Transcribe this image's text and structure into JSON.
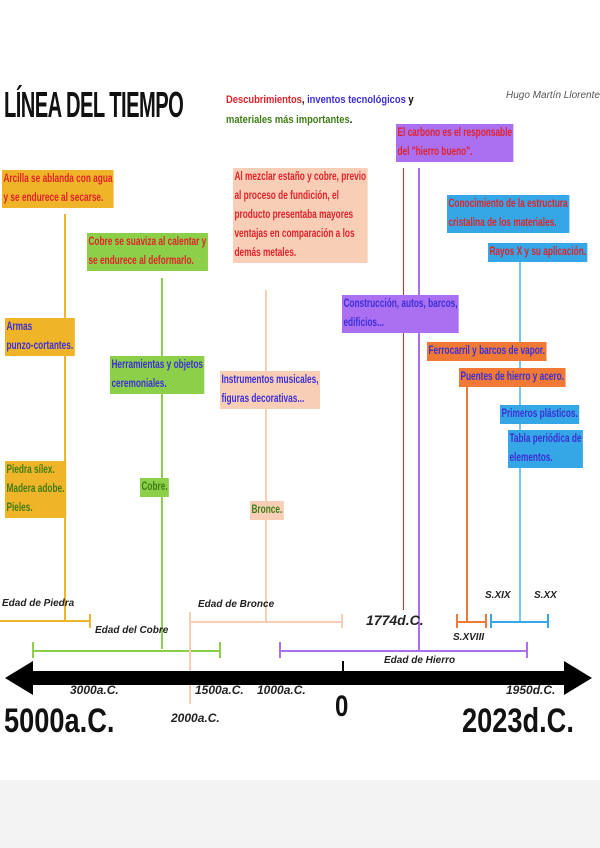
{
  "title": "LÍNEA DEL TIEMPO",
  "legend": {
    "discoveries": "Descubrimientos",
    "sep": ", ",
    "inventions": "inventos tecnológicos",
    "y": " y",
    "materials": "materiales más importantes",
    "dot": "."
  },
  "author": "Hugo Martín Llorente",
  "stone": {
    "discovery": [
      "Arcilla se ablanda con agua",
      "y se endurece al secarse."
    ],
    "invention": [
      "Armas",
      "punzo-cortantes."
    ],
    "material": [
      "Piedra sílex.",
      "Madera adobe.",
      "Pieles."
    ],
    "label": "Edad de Piedra"
  },
  "copper": {
    "discovery": [
      "Cobre se suaviza al calentar y",
      "se endurece al deformarlo."
    ],
    "invention": [
      "Herramientas y objetos",
      "ceremoniales."
    ],
    "material": "Cobre.",
    "label": "Edad del Cobre"
  },
  "bronze": {
    "discovery": [
      "Al mezclar estaño y cobre, previo",
      "al proceso de fundición, el",
      "producto presentaba mayores",
      "ventajas en comparación a los",
      "demás metales."
    ],
    "invention": [
      "Instrumentos musicales,",
      "figuras decorativas..."
    ],
    "material": "Bronce.",
    "label": "Edad de Bronce"
  },
  "iron": {
    "discovery": [
      "El carbono es el responsable",
      "del \"hierro bueno\"."
    ],
    "invention": [
      "Construcción, autos, barcos,",
      "edificios..."
    ],
    "label": "Edad de Hierro",
    "date": "1774d.C."
  },
  "c18": {
    "invention": [
      "Ferrocarril y barcos de vapor.",
      "Puentes de hierro y acero."
    ],
    "label": "S.XVIII"
  },
  "c19": {
    "label": "S.XIX"
  },
  "c20": {
    "discovery": [
      "Conocimiento de la estructura",
      "cristalina de los materiales.",
      "Rayos X y su aplicación."
    ],
    "invention": [
      "Primeros plásticos.",
      "Tabla periódica de",
      "elementos."
    ],
    "label": "S.XX"
  },
  "axis": {
    "start": "5000a.C.",
    "end": "2023d.C.",
    "zero": "0",
    "ticks": [
      "3000a.C.",
      "2000a.C.",
      "1500a.C.",
      "1000a.C.",
      "1950d.C."
    ]
  },
  "colors": {
    "stone": "#f0b429",
    "copper": "#8bd048",
    "bronze": "#f8ceb6",
    "iron": "#ab6ff2",
    "c18": "#f07a35",
    "c20": "#35a6e6"
  }
}
